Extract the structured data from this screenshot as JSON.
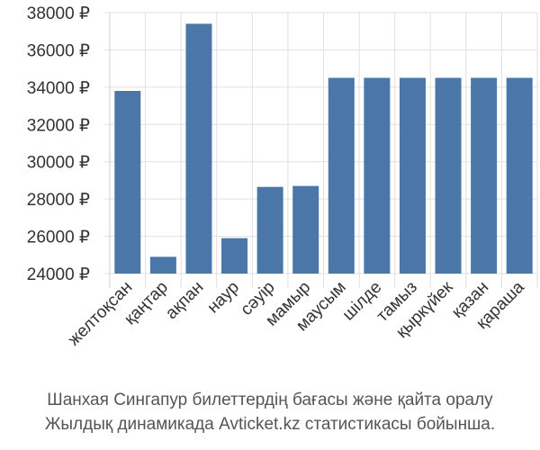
{
  "chart_data": {
    "type": "bar",
    "categories": [
      "желтоқсан",
      "қаңтар",
      "ақпан",
      "наур",
      "сәуір",
      "мамыр",
      "маусым",
      "шілде",
      "тамыз",
      "қыркүйек",
      "қазан",
      "қараша"
    ],
    "values": [
      33800,
      24900,
      37400,
      25900,
      28650,
      28700,
      34500,
      34500,
      34500,
      34500,
      34500,
      34500
    ],
    "ylim": [
      24000,
      38000
    ],
    "yticks": [
      24000,
      26000,
      28000,
      30000,
      32000,
      34000,
      36000,
      38000
    ],
    "ytick_labels": [
      "24000 ₽",
      "26000 ₽",
      "28000 ₽",
      "30000 ₽",
      "32000 ₽",
      "34000 ₽",
      "36000 ₽",
      "38000 ₽"
    ],
    "grid": true,
    "bar_color": "#4a76a8",
    "grid_color": "#e0e0e0"
  },
  "caption": {
    "line1": "Шанхая Сингапур билеттердің бағасы және қайта оралу",
    "line2": "Жылдық динамикада Avticket.kz статистикасы бойынша."
  }
}
